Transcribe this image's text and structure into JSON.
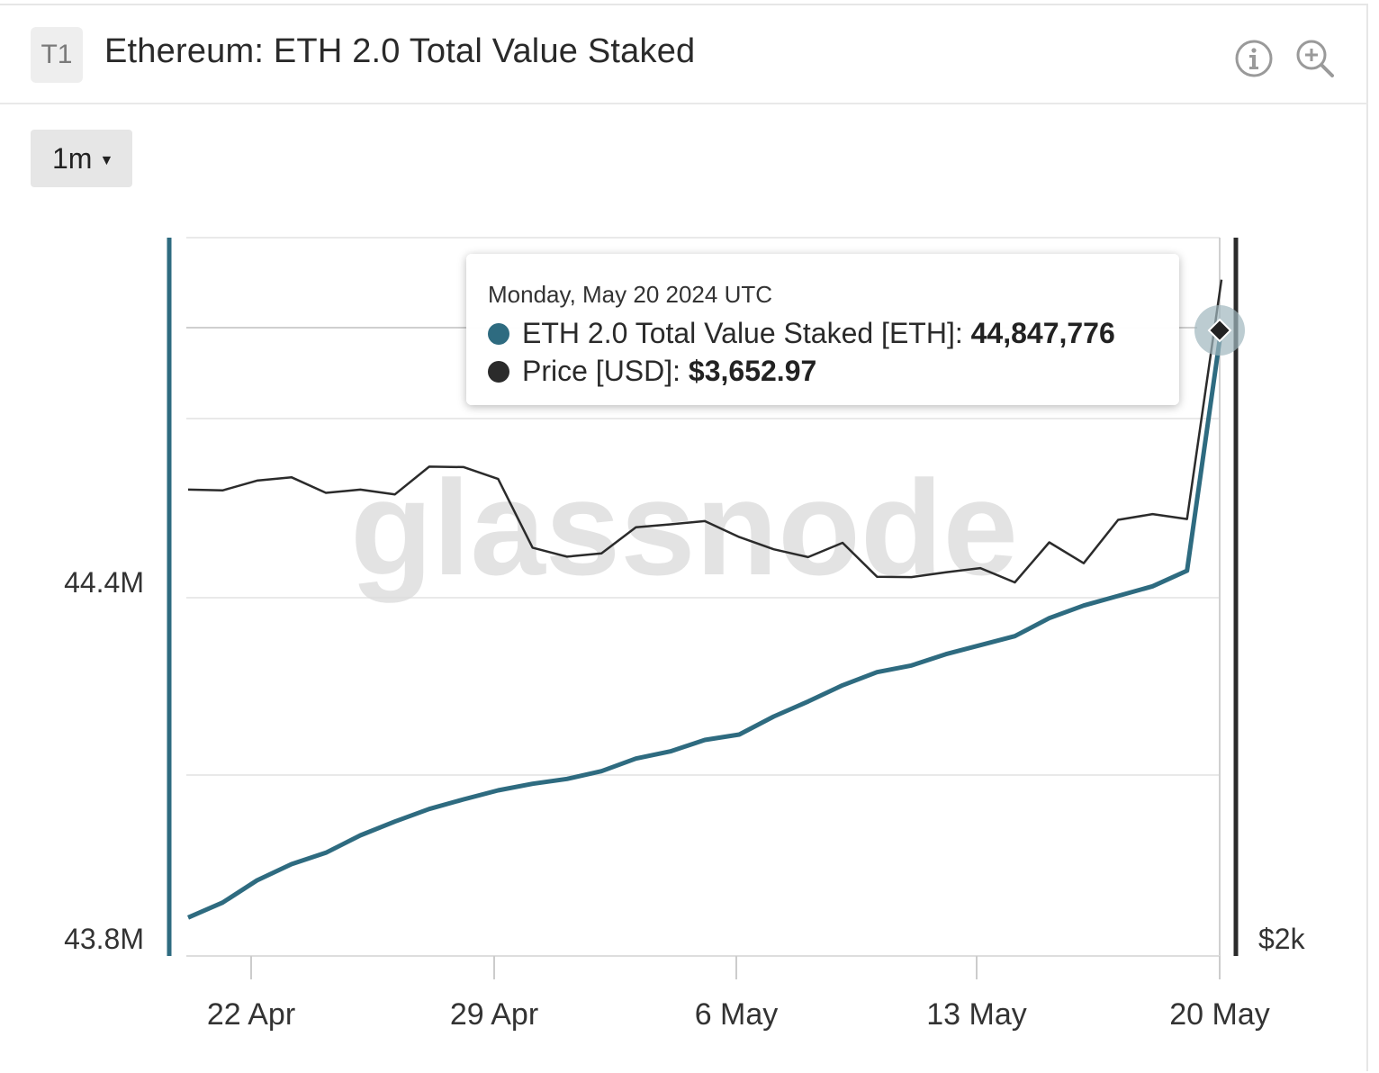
{
  "header": {
    "badge": "T1",
    "title": "Ethereum: ETH 2.0 Total Value Staked",
    "icons": [
      "info-icon",
      "zoom-in-icon"
    ]
  },
  "controls": {
    "range_label": "1m"
  },
  "watermark": "glassnode",
  "colors": {
    "staked": "#2e6b80",
    "price": "#2b2b2b",
    "grid": "#e9e9e9"
  },
  "tooltip": {
    "date": "Monday, May 20 2024 UTC",
    "series1_label": "ETH 2.0 Total Value Staked [ETH]: ",
    "series1_value": "44,847,776",
    "series2_label": "Price [USD]: ",
    "series2_value": "$3,652.97"
  },
  "chart_data": {
    "type": "line",
    "x_ticks": [
      "22 Apr",
      "29 Apr",
      "6 May",
      "13 May",
      "20 May"
    ],
    "y_left_ticks": [
      "43.8M",
      "44.4M"
    ],
    "y_right_ticks": [
      "$2k"
    ],
    "grid": true,
    "series": [
      {
        "name": "ETH 2.0 Total Value Staked [ETH]",
        "axis": "left",
        "x": [
          "2024-04-20",
          "2024-04-21",
          "2024-04-22",
          "2024-04-23",
          "2024-04-24",
          "2024-04-25",
          "2024-04-26",
          "2024-04-27",
          "2024-04-28",
          "2024-04-29",
          "2024-04-30",
          "2024-05-01",
          "2024-05-02",
          "2024-05-03",
          "2024-05-04",
          "2024-05-05",
          "2024-05-06",
          "2024-05-07",
          "2024-05-08",
          "2024-05-09",
          "2024-05-10",
          "2024-05-11",
          "2024-05-12",
          "2024-05-13",
          "2024-05-14",
          "2024-05-15",
          "2024-05-16",
          "2024-05-17",
          "2024-05-18",
          "2024-05-19",
          "2024-05-20"
        ],
        "values": [
          43.864,
          43.889,
          43.926,
          43.953,
          43.972,
          44.001,
          44.024,
          44.045,
          44.061,
          44.076,
          44.087,
          44.095,
          44.108,
          44.129,
          44.141,
          44.16,
          44.169,
          44.199,
          44.224,
          44.251,
          44.273,
          44.284,
          44.303,
          44.318,
          44.333,
          44.363,
          44.384,
          44.4,
          44.416,
          44.442,
          44.848
        ]
      },
      {
        "name": "Price [USD]",
        "axis": "right",
        "x": [
          "2024-04-20",
          "2024-04-21",
          "2024-04-22",
          "2024-04-23",
          "2024-04-24",
          "2024-04-25",
          "2024-04-26",
          "2024-04-27",
          "2024-04-28",
          "2024-04-29",
          "2024-04-30",
          "2024-05-01",
          "2024-05-02",
          "2024-05-03",
          "2024-05-04",
          "2024-05-05",
          "2024-05-06",
          "2024-05-07",
          "2024-05-08",
          "2024-05-09",
          "2024-05-10",
          "2024-05-11",
          "2024-05-12",
          "2024-05-13",
          "2024-05-14",
          "2024-05-15",
          "2024-05-16",
          "2024-05-17",
          "2024-05-18",
          "2024-05-19",
          "2024-05-20"
        ],
        "values": [
          3140,
          3138,
          3162,
          3170,
          3132,
          3140,
          3128,
          3196,
          3195,
          3166,
          2998,
          2976,
          2984,
          3048,
          3055,
          3063,
          3024,
          2994,
          2975,
          3010,
          2927,
          2926,
          2938,
          2948,
          2913,
          3011,
          2960,
          3066,
          3080,
          3068,
          3652.97
        ]
      }
    ]
  }
}
